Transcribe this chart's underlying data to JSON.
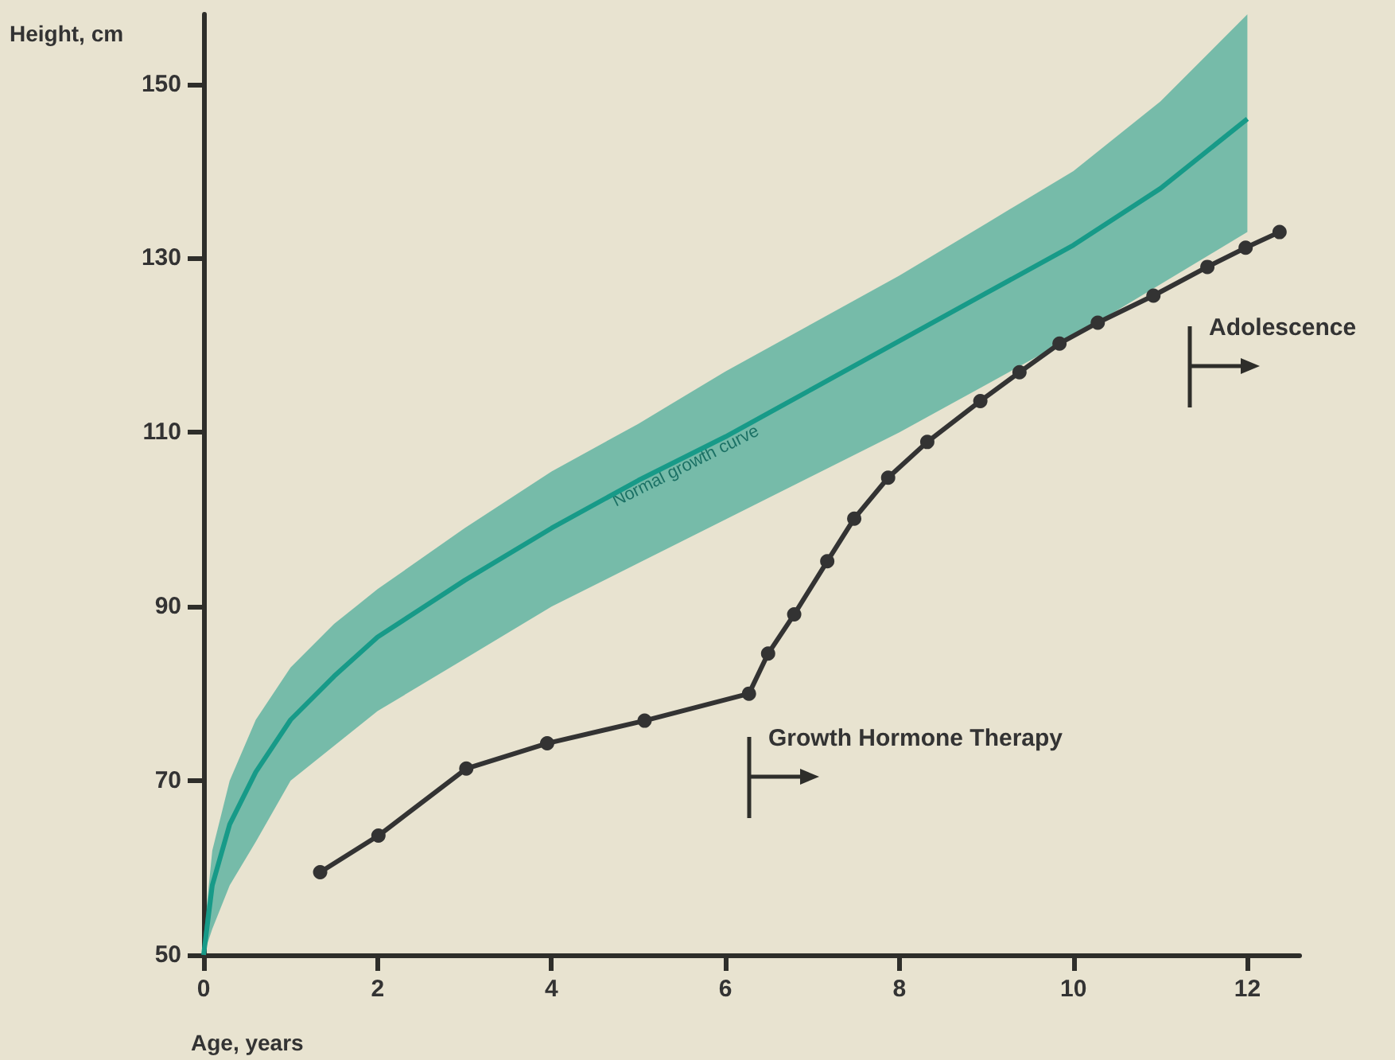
{
  "chart_data": {
    "type": "line",
    "xlabel": "Age, years",
    "ylabel": "Height, cm",
    "xlim": [
      0,
      12.6
    ],
    "xticks": [
      0,
      2,
      4,
      6,
      8,
      10,
      12
    ],
    "ylim": [
      50,
      158
    ],
    "yticks": [
      50,
      70,
      90,
      110,
      130,
      150
    ],
    "grid": false,
    "legend": false,
    "series": [
      {
        "name": "Normal growth curve",
        "color": "#179a88",
        "x": [
          0,
          0.1,
          0.3,
          0.6,
          1,
          1.5,
          2,
          3,
          4,
          5,
          6,
          7,
          8,
          9,
          10,
          11,
          12
        ],
        "values": [
          50,
          58,
          65,
          71,
          77,
          82,
          86.5,
          93,
          99,
          104.5,
          109.5,
          115,
          120.5,
          126,
          131.5,
          138,
          146
        ],
        "lower": [
          50,
          53,
          58,
          63,
          70,
          74,
          78,
          84,
          90,
          95,
          100,
          105,
          110,
          115.5,
          121,
          127,
          133
        ],
        "upper": [
          52,
          62,
          70,
          77,
          83,
          88,
          92,
          99,
          105.5,
          111,
          117,
          122.5,
          128,
          134,
          140,
          148,
          158
        ],
        "marker": "none"
      },
      {
        "color": "#333333",
        "marker": "circle",
        "x": [
          1.34,
          2.01,
          3.02,
          3.95,
          5.07,
          6.27,
          6.49,
          6.79,
          7.17,
          7.48,
          7.87,
          8.32,
          8.93,
          9.38,
          9.84,
          10.28,
          10.92,
          11.54,
          11.98,
          12.37
        ],
        "values": [
          59.5,
          63.7,
          71.4,
          74.3,
          76.9,
          80,
          84.6,
          89.1,
          95.2,
          100.1,
          104.8,
          108.9,
          113.6,
          116.9,
          120.2,
          122.6,
          125.7,
          129,
          131.2,
          133
        ]
      }
    ],
    "annotations": [
      "Growth Hormone Therapy",
      "Adolescence"
    ]
  }
}
